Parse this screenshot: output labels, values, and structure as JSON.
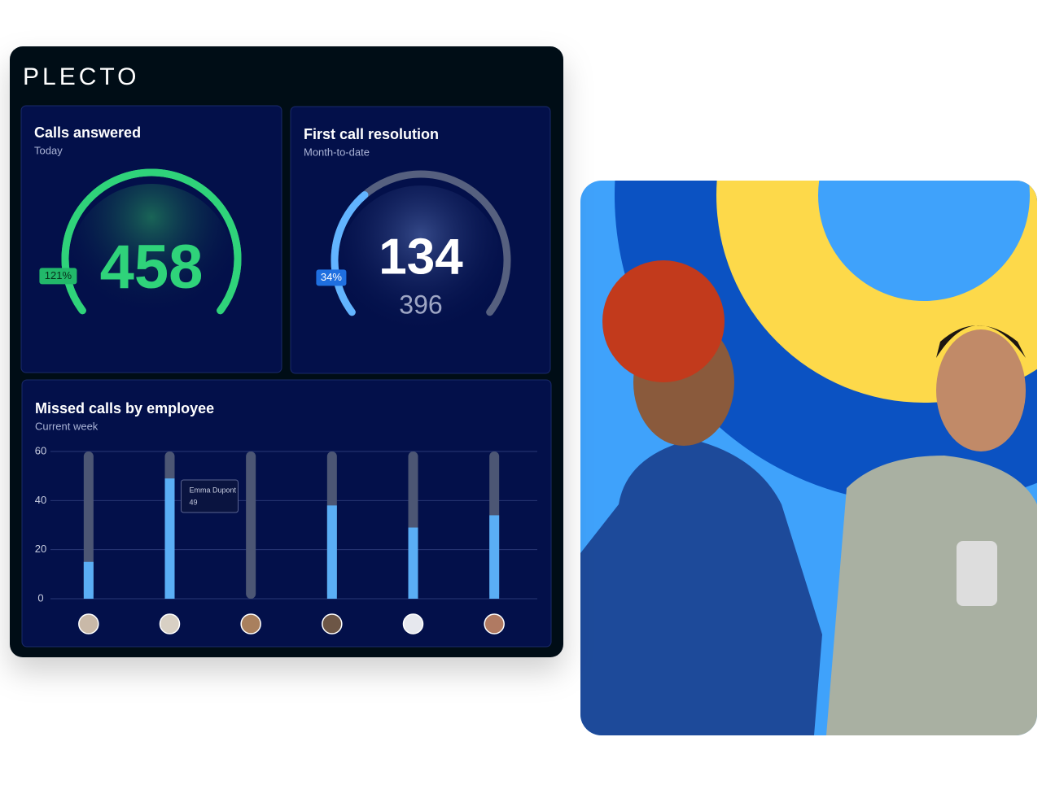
{
  "logo": "PLECTO",
  "widgets": [
    {
      "title": "Calls answered",
      "subtitle": "Today",
      "value": 458,
      "percent": {
        "value": 121,
        "label": "121%"
      },
      "color": "#2fd37a",
      "track_color": "#2fd37a"
    },
    {
      "title": "First call resolution",
      "subtitle": "Month-to-date",
      "value": 134,
      "target": 396,
      "percent": {
        "value": 34,
        "label": "34%"
      },
      "color": "#62b4ff",
      "track_color": "#56607f"
    }
  ],
  "chart_data": {
    "type": "bar",
    "title": "Missed calls by employee",
    "subtitle": "Current week",
    "categories": [
      null,
      "Emma Dupont",
      null,
      null,
      null,
      null
    ],
    "values": [
      15,
      49,
      0,
      38,
      29,
      34
    ],
    "ylim": [
      0,
      60
    ],
    "yticks": [
      0,
      20,
      40,
      60
    ],
    "grid": true,
    "color": "#5aaef5",
    "track_color": "#4c5674"
  }
}
